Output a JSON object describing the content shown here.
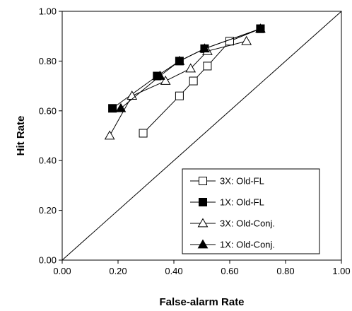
{
  "chart_data": {
    "type": "line",
    "xlabel": "False-alarm Rate",
    "ylabel": "Hit Rate",
    "xlim": [
      0,
      1
    ],
    "ylim": [
      0,
      1
    ],
    "x_ticks": [
      "0.00",
      "0.20",
      "0.40",
      "0.60",
      "0.80",
      "1.00"
    ],
    "y_ticks": [
      "0.00",
      "0.20",
      "0.40",
      "0.60",
      "0.80",
      "1.00"
    ],
    "grid": false,
    "legend_position": "bottom-right",
    "reference_line": "diagonal (chance)",
    "series": [
      {
        "name": "3X: Old-FL",
        "marker": "open-square",
        "points": [
          [
            0.29,
            0.51
          ],
          [
            0.42,
            0.66
          ],
          [
            0.47,
            0.72
          ],
          [
            0.52,
            0.78
          ],
          [
            0.6,
            0.88
          ],
          [
            0.71,
            0.93
          ]
        ]
      },
      {
        "name": "1X: Old-FL",
        "marker": "filled-square",
        "points": [
          [
            0.18,
            0.61
          ],
          [
            0.34,
            0.74
          ],
          [
            0.42,
            0.8
          ],
          [
            0.51,
            0.85
          ],
          [
            0.71,
            0.93
          ]
        ]
      },
      {
        "name": "3X: Old-Conj.",
        "marker": "open-triangle",
        "points": [
          [
            0.17,
            0.5
          ],
          [
            0.25,
            0.66
          ],
          [
            0.37,
            0.72
          ],
          [
            0.46,
            0.77
          ],
          [
            0.52,
            0.84
          ],
          [
            0.66,
            0.88
          ]
        ]
      },
      {
        "name": "1X: Old-Conj.",
        "marker": "filled-triangle",
        "points": [
          [
            0.21,
            0.61
          ],
          [
            0.35,
            0.74
          ],
          [
            0.42,
            0.8
          ],
          [
            0.51,
            0.85
          ],
          [
            0.71,
            0.93
          ]
        ]
      }
    ]
  }
}
